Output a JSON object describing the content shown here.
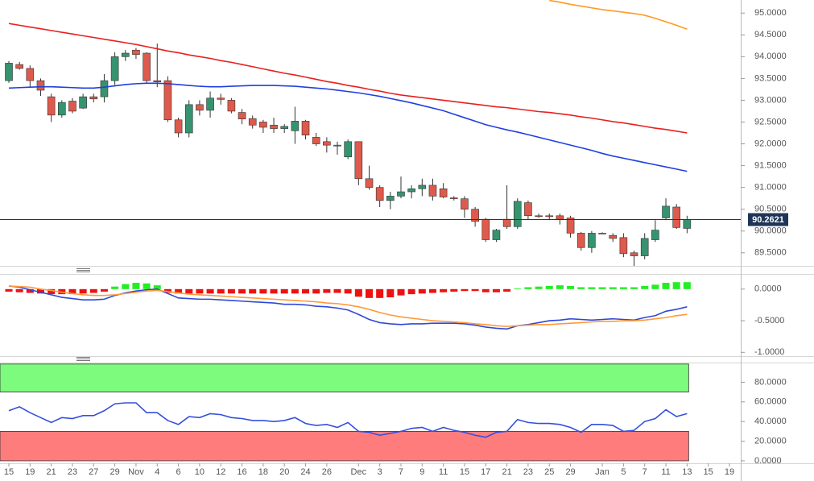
{
  "chart_data": [
    {
      "type": "candlestick",
      "ylim": [
        89.2,
        95.3
      ],
      "yticks": [
        {
          "value": 89.5,
          "label": "89.5000"
        },
        {
          "value": 90,
          "label": "90.0000"
        },
        {
          "value": 90.5,
          "label": "90.5000"
        },
        {
          "value": 91,
          "label": "91.0000"
        },
        {
          "value": 91.5,
          "label": "91.5000"
        },
        {
          "value": 92,
          "label": "92.0000"
        },
        {
          "value": 92.5,
          "label": "92.5000"
        },
        {
          "value": 93,
          "label": "93.0000"
        },
        {
          "value": 93.5,
          "label": "93.5000"
        },
        {
          "value": 94,
          "label": "94.0000"
        },
        {
          "value": 94.5,
          "label": "94.5000"
        },
        {
          "value": 95,
          "label": "95.0000"
        }
      ],
      "up_color": "#36936f",
      "down_color": "#dd5a4c",
      "open": [
        93.45,
        93.82,
        93.73,
        93.45,
        93.08,
        92.66,
        92.98,
        92.82,
        93.08,
        93.08,
        93.45,
        94.0,
        94.15,
        94.08,
        93.45,
        93.45,
        92.55,
        92.25,
        92.9,
        92.77,
        93.05,
        93.0,
        92.72,
        92.58,
        92.5,
        92.43,
        92.35,
        92.3,
        92.52,
        92.15,
        92.05,
        91.97,
        91.7,
        92.05,
        91.2,
        91.0,
        90.7,
        90.8,
        90.9,
        90.97,
        91.05,
        90.97,
        90.76,
        90.74,
        90.5,
        90.27,
        89.8,
        90.27,
        90.1,
        90.65,
        90.35,
        90.35,
        90.35,
        90.3,
        89.95,
        89.62,
        89.95,
        89.9,
        89.85,
        89.5,
        89.43,
        89.8,
        90.3,
        90.55,
        90.06,
        null,
        null,
        null,
        null
      ],
      "high": [
        93.9,
        93.88,
        93.8,
        93.5,
        93.15,
        93.0,
        93.05,
        93.15,
        93.15,
        93.6,
        94.1,
        94.15,
        94.2,
        94.1,
        94.3,
        93.55,
        92.6,
        93.0,
        93.0,
        93.2,
        93.15,
        93.05,
        92.8,
        92.65,
        92.55,
        92.6,
        92.45,
        92.85,
        92.55,
        92.25,
        92.15,
        92.05,
        92.1,
        92.05,
        91.5,
        91.05,
        90.9,
        91.25,
        91.05,
        91.2,
        91.2,
        91.1,
        90.8,
        90.8,
        90.55,
        90.3,
        90.05,
        91.05,
        90.75,
        90.7,
        90.4,
        90.4,
        90.4,
        90.35,
        89.98,
        90.0,
        89.97,
        89.95,
        89.95,
        89.55,
        89.95,
        90.25,
        90.75,
        90.62,
        90.35,
        null,
        null,
        null,
        null
      ],
      "low": [
        93.4,
        93.7,
        93.3,
        93.1,
        92.5,
        92.6,
        92.7,
        92.8,
        92.95,
        92.95,
        93.35,
        93.9,
        93.95,
        93.4,
        93.3,
        92.5,
        92.15,
        92.15,
        92.65,
        92.6,
        92.9,
        92.7,
        92.45,
        92.35,
        92.25,
        92.25,
        92.25,
        92.0,
        92.1,
        91.95,
        91.8,
        91.75,
        91.65,
        91.05,
        90.95,
        90.55,
        90.5,
        90.75,
        90.75,
        90.8,
        90.7,
        90.75,
        90.7,
        90.3,
        90.1,
        89.75,
        89.75,
        90.05,
        90.05,
        90.25,
        90.3,
        90.25,
        90.15,
        89.85,
        89.55,
        89.5,
        89.93,
        89.75,
        89.4,
        89.2,
        89.35,
        89.75,
        90.25,
        90.05,
        89.95,
        null,
        null,
        null,
        null
      ],
      "close": [
        93.85,
        93.73,
        93.45,
        93.23,
        92.66,
        92.95,
        92.75,
        93.08,
        93.03,
        93.45,
        94.0,
        94.08,
        94.05,
        93.45,
        93.42,
        92.55,
        92.25,
        92.9,
        92.77,
        93.05,
        93.02,
        92.75,
        92.57,
        92.43,
        92.38,
        92.35,
        92.4,
        92.52,
        92.2,
        92.0,
        91.97,
        91.95,
        92.05,
        91.2,
        91.0,
        90.7,
        90.8,
        90.9,
        90.97,
        91.05,
        90.8,
        90.78,
        90.75,
        90.5,
        90.22,
        89.8,
        90.02,
        90.1,
        90.68,
        90.35,
        90.34,
        90.33,
        90.27,
        89.95,
        89.62,
        89.95,
        89.94,
        89.83,
        89.48,
        89.43,
        89.83,
        90.02,
        90.57,
        90.08,
        90.26,
        null,
        null,
        null,
        null
      ],
      "series": [
        {
          "color": "#1f3fe0",
          "values": [
            93.28,
            93.29,
            93.3,
            93.31,
            93.31,
            93.3,
            93.29,
            93.28,
            93.28,
            93.3,
            93.33,
            93.36,
            93.38,
            93.39,
            93.39,
            93.38,
            93.36,
            93.34,
            93.32,
            93.31,
            93.31,
            93.32,
            93.33,
            93.34,
            93.34,
            93.34,
            93.33,
            93.32,
            93.3,
            93.28,
            93.26,
            93.23,
            93.2,
            93.17,
            93.13,
            93.09,
            93.04,
            92.99,
            92.94,
            92.88,
            92.82,
            92.76,
            92.68,
            92.6,
            92.52,
            92.44,
            92.38,
            92.32,
            92.27,
            92.21,
            92.15,
            92.09,
            92.03,
            91.97,
            91.91,
            91.85,
            91.78,
            91.72,
            91.67,
            91.62,
            91.57,
            91.52,
            91.47,
            91.42,
            91.37,
            null,
            null,
            null,
            null
          ]
        },
        {
          "color": "#e8201f",
          "values": [
            94.76,
            94.72,
            94.68,
            94.64,
            94.6,
            94.56,
            94.52,
            94.48,
            94.44,
            94.4,
            94.36,
            94.32,
            94.28,
            94.23,
            94.18,
            94.13,
            94.09,
            94.04,
            94.0,
            93.96,
            93.91,
            93.87,
            93.82,
            93.77,
            93.72,
            93.67,
            93.62,
            93.58,
            93.53,
            93.48,
            93.43,
            93.39,
            93.34,
            93.3,
            93.25,
            93.21,
            93.16,
            93.12,
            93.09,
            93.06,
            93.03,
            93.0,
            92.97,
            92.94,
            92.91,
            92.88,
            92.85,
            92.83,
            92.8,
            92.77,
            92.74,
            92.72,
            92.69,
            92.66,
            92.62,
            92.59,
            92.55,
            92.51,
            92.48,
            92.44,
            92.4,
            92.36,
            92.33,
            92.29,
            92.25,
            null,
            null,
            null,
            null
          ]
        },
        {
          "color": "#ff9a1f",
          "values": [
            null,
            null,
            null,
            null,
            null,
            null,
            null,
            null,
            null,
            null,
            null,
            null,
            null,
            null,
            null,
            null,
            null,
            null,
            null,
            null,
            null,
            null,
            null,
            null,
            null,
            null,
            null,
            null,
            null,
            null,
            null,
            null,
            null,
            null,
            null,
            null,
            null,
            null,
            null,
            null,
            null,
            null,
            null,
            null,
            null,
            null,
            null,
            null,
            null,
            null,
            null,
            95.29,
            95.25,
            95.2,
            95.16,
            95.12,
            95.08,
            95.05,
            95.02,
            94.99,
            94.95,
            94.88,
            94.8,
            94.72,
            94.63,
            null,
            null,
            null,
            null
          ]
        }
      ],
      "last_price": 90.2621
    },
    {
      "type": "macd",
      "ylim": [
        -1.06,
        0.24
      ],
      "yticks": [
        {
          "value": -1,
          "label": "-1.0000"
        },
        {
          "value": -0.5,
          "label": "-0.5000"
        },
        {
          "value": 0,
          "label": "0.0000"
        }
      ],
      "pos_color": "#22ee22",
      "neg_color": "#ee1111",
      "histogram": [
        -0.04,
        -0.05,
        -0.06,
        -0.07,
        -0.08,
        -0.08,
        -0.08,
        -0.07,
        -0.06,
        -0.04,
        0.04,
        0.08,
        0.1,
        0.09,
        0.06,
        -0.06,
        -0.07,
        -0.07,
        -0.07,
        -0.07,
        -0.07,
        -0.07,
        -0.07,
        -0.07,
        -0.07,
        -0.07,
        -0.07,
        -0.07,
        -0.07,
        -0.07,
        -0.06,
        -0.06,
        -0.07,
        -0.12,
        -0.14,
        -0.14,
        -0.13,
        -0.1,
        -0.08,
        -0.07,
        -0.06,
        -0.05,
        -0.04,
        -0.03,
        -0.03,
        -0.05,
        -0.05,
        -0.04,
        0.01,
        0.03,
        0.04,
        0.05,
        0.06,
        0.05,
        0.03,
        0.03,
        0.03,
        0.03,
        0.03,
        0.03,
        0.05,
        0.07,
        0.1,
        0.11,
        0.11,
        null,
        null,
        null,
        null
      ],
      "series": [
        {
          "color": "#3048d8",
          "values": [
            0.05,
            0.03,
            -0.01,
            -0.05,
            -0.09,
            -0.13,
            -0.15,
            -0.17,
            -0.17,
            -0.16,
            -0.1,
            -0.06,
            -0.03,
            -0.01,
            0.0,
            -0.07,
            -0.14,
            -0.15,
            -0.16,
            -0.16,
            -0.17,
            -0.18,
            -0.19,
            -0.2,
            -0.21,
            -0.22,
            -0.24,
            -0.24,
            -0.25,
            -0.27,
            -0.28,
            -0.3,
            -0.33,
            -0.4,
            -0.48,
            -0.53,
            -0.55,
            -0.56,
            -0.55,
            -0.55,
            -0.54,
            -0.54,
            -0.54,
            -0.55,
            -0.57,
            -0.6,
            -0.62,
            -0.63,
            -0.58,
            -0.56,
            -0.53,
            -0.5,
            -0.49,
            -0.47,
            -0.48,
            -0.49,
            -0.48,
            -0.47,
            -0.48,
            -0.49,
            -0.45,
            -0.42,
            -0.35,
            -0.32,
            -0.28,
            null,
            null,
            null,
            null
          ]
        },
        {
          "color": "#ff9a3a",
          "values": [
            0.05,
            0.04,
            0.03,
            0.0,
            -0.02,
            -0.05,
            -0.07,
            -0.09,
            -0.1,
            -0.1,
            -0.09,
            -0.07,
            -0.05,
            -0.03,
            -0.02,
            -0.04,
            -0.06,
            -0.08,
            -0.09,
            -0.1,
            -0.11,
            -0.12,
            -0.13,
            -0.14,
            -0.15,
            -0.16,
            -0.17,
            -0.18,
            -0.19,
            -0.2,
            -0.22,
            -0.23,
            -0.25,
            -0.28,
            -0.32,
            -0.37,
            -0.41,
            -0.44,
            -0.46,
            -0.48,
            -0.5,
            -0.51,
            -0.52,
            -0.53,
            -0.55,
            -0.56,
            -0.58,
            -0.59,
            -0.58,
            -0.57,
            -0.56,
            -0.56,
            -0.55,
            -0.54,
            -0.53,
            -0.52,
            -0.51,
            -0.51,
            -0.5,
            -0.5,
            -0.49,
            -0.47,
            -0.45,
            -0.42,
            -0.4,
            null,
            null,
            null,
            null
          ]
        }
      ]
    },
    {
      "type": "line",
      "ylim": [
        -2.5,
        100
      ],
      "yticks": [
        {
          "value": 0,
          "label": "0.0000"
        },
        {
          "value": 20,
          "label": "20.0000"
        },
        {
          "value": 40,
          "label": "40.0000"
        },
        {
          "value": 60,
          "label": "60.0000"
        },
        {
          "value": 80,
          "label": "80.0000"
        }
      ],
      "bands": [
        {
          "from": 70,
          "to": 98.5,
          "color": "#7dfb7d"
        },
        {
          "from": 0,
          "to": 30,
          "color": "#ff7c7c"
        }
      ],
      "categories": [
        "15",
        null,
        "19",
        null,
        "21",
        null,
        "23",
        null,
        "27",
        null,
        "29",
        null,
        "Nov",
        null,
        "4",
        null,
        "6",
        null,
        "10",
        null,
        "12",
        null,
        "16",
        null,
        "18",
        null,
        "20",
        null,
        "24",
        null,
        "26",
        null,
        null,
        "Dec",
        null,
        "3",
        null,
        "7",
        null,
        "9",
        null,
        "11",
        null,
        "15",
        null,
        "17",
        null,
        "21",
        null,
        "23",
        null,
        "25",
        null,
        "29",
        null,
        null,
        "Jan",
        null,
        "5",
        null,
        "7",
        null,
        "11",
        null,
        "13",
        null,
        "15",
        null,
        "19"
      ],
      "series": [
        {
          "color": "#3350dd",
          "values": [
            51,
            55,
            49,
            44,
            39,
            44,
            43,
            46,
            46,
            51,
            58,
            59,
            59,
            49,
            49,
            41,
            37,
            45,
            44,
            48,
            47,
            44,
            43,
            41,
            41,
            40,
            41,
            44,
            38,
            36,
            37,
            34,
            39,
            30,
            29,
            26,
            28,
            30,
            33,
            34,
            30,
            34,
            31,
            29,
            26,
            24,
            29,
            30,
            42,
            39,
            38,
            38,
            37,
            34,
            29,
            37,
            37,
            36,
            30,
            31,
            40,
            43,
            52,
            45,
            48,
            null,
            null,
            null,
            null
          ]
        }
      ]
    }
  ]
}
